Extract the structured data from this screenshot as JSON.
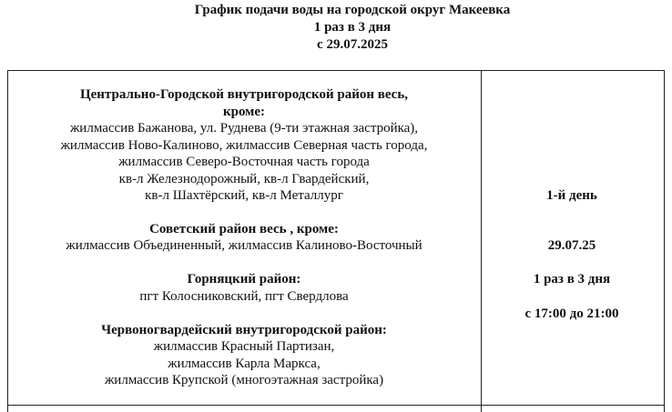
{
  "header": {
    "title": "График подачи воды на городской округ Макеевка",
    "frequency": "1 раз в 3 дня",
    "since": "с 29.07.2025"
  },
  "left": {
    "central_title1": "Центрально-Городской внутригородской район весь,",
    "central_title2": "кроме:",
    "central_lines": [
      "жилмассив Бажанова, ул. Руднева (9-ти этажная застройка),",
      "жилмассив Ново-Калиново, жилмассив Северная часть города,",
      "жилмассив Северо-Восточная часть города",
      "кв-л Железнодорожный, кв-л Гвардейский,",
      "кв-л Шахтёрский, кв-л Металлург"
    ],
    "soviet_title": "Советский район весь , кроме:",
    "soviet_line": "жилмассив Объединенный, жилмассив Калиново-Восточный",
    "gorn_title": "Горняцкий район:",
    "gorn_line": "пгт Колосниковский, пгт Свердлова",
    "cherv_title": "Червоногвардейский внутригородской район:",
    "cherv_lines": [
      "жилмассив Красный Партизан,",
      "жилмассив Карла Маркса,",
      "жилмассив Крупской (многоэтажная застройка)"
    ]
  },
  "right": {
    "day": "1-й день",
    "date": "29.07.25",
    "frequency": "1 раз в 3 дня",
    "time": "с 17:00 до 21:00"
  }
}
